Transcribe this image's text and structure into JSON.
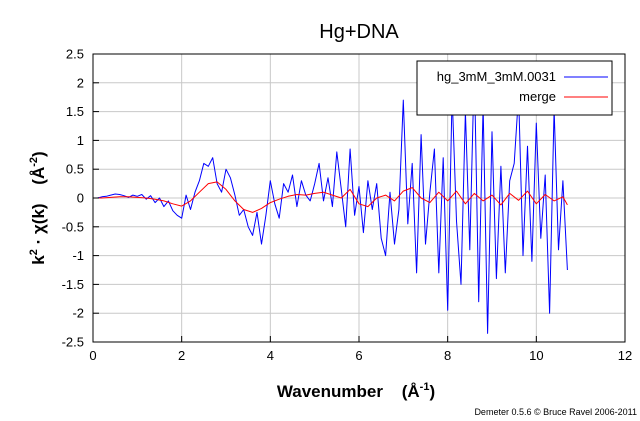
{
  "chart_data": {
    "type": "line",
    "title": "Hg+DNA",
    "xlabel": "Wavenumber",
    "xlabel_unit": "(Å",
    "xlabel_unit_sup": "-1",
    "xlabel_unit_close": ")",
    "ylabel_k": "k",
    "ylabel_k_sup": "2",
    "ylabel_chi": " · χ(k)",
    "ylabel_unit": "(Å",
    "ylabel_unit_sup": "-2",
    "ylabel_unit_close": ")",
    "xlim": [
      0,
      12
    ],
    "ylim": [
      -2.5,
      2.5
    ],
    "x_ticks": [
      "0",
      "2",
      "4",
      "6",
      "8",
      "10",
      "12"
    ],
    "y_ticks": [
      "-2.5",
      "-2",
      "-1.5",
      "-1",
      "-0.5",
      "0",
      "0.5",
      "1",
      "1.5",
      "2",
      "2.5"
    ],
    "grid": true,
    "legend_position": "top-right",
    "credit": "Demeter 0.5.6 © Bruce Ravel 2006-2011",
    "series": [
      {
        "name": "hg_3mM_3mM.0031",
        "color": "#0000ff",
        "x": [
          0.0,
          0.1,
          0.2,
          0.3,
          0.4,
          0.5,
          0.6,
          0.7,
          0.8,
          0.9,
          1.0,
          1.1,
          1.2,
          1.3,
          1.4,
          1.5,
          1.6,
          1.7,
          1.8,
          1.9,
          2.0,
          2.1,
          2.2,
          2.3,
          2.4,
          2.5,
          2.6,
          2.7,
          2.8,
          2.9,
          3.0,
          3.1,
          3.2,
          3.3,
          3.4,
          3.5,
          3.6,
          3.7,
          3.8,
          3.9,
          4.0,
          4.1,
          4.2,
          4.3,
          4.4,
          4.5,
          4.6,
          4.7,
          4.8,
          4.9,
          5.0,
          5.1,
          5.2,
          5.3,
          5.4,
          5.5,
          5.6,
          5.7,
          5.8,
          5.9,
          6.0,
          6.1,
          6.2,
          6.3,
          6.4,
          6.5,
          6.6,
          6.7,
          6.8,
          6.9,
          7.0,
          7.1,
          7.2,
          7.3,
          7.4,
          7.5,
          7.6,
          7.7,
          7.8,
          7.9,
          8.0,
          8.1,
          8.2,
          8.3,
          8.4,
          8.5,
          8.6,
          8.7,
          8.8,
          8.9,
          9.0,
          9.1,
          9.2,
          9.3,
          9.4,
          9.5,
          9.6,
          9.7,
          9.8,
          9.9,
          10.0,
          10.1,
          10.2,
          10.3,
          10.4,
          10.5,
          10.6,
          10.7
        ],
        "y": [
          0.0,
          0.0,
          0.02,
          0.03,
          0.05,
          0.07,
          0.06,
          0.04,
          0.01,
          0.05,
          0.03,
          0.06,
          -0.02,
          0.04,
          -0.08,
          0.0,
          -0.15,
          -0.05,
          -0.22,
          -0.3,
          -0.35,
          0.05,
          -0.2,
          0.1,
          0.3,
          0.6,
          0.55,
          0.7,
          0.25,
          0.1,
          0.5,
          0.35,
          0.05,
          -0.3,
          -0.2,
          -0.5,
          -0.65,
          -0.25,
          -0.8,
          -0.3,
          0.3,
          -0.1,
          -0.35,
          0.25,
          0.1,
          0.4,
          -0.15,
          0.3,
          0.05,
          -0.05,
          0.25,
          0.6,
          -0.05,
          0.35,
          -0.15,
          0.8,
          0.15,
          -0.5,
          0.85,
          -0.3,
          0.2,
          -0.6,
          0.3,
          -0.2,
          0.25,
          -0.7,
          -1.0,
          0.1,
          -0.8,
          -0.2,
          1.7,
          -0.45,
          0.6,
          -1.3,
          1.1,
          -0.8,
          0.1,
          0.85,
          -1.3,
          0.7,
          -1.95,
          1.8,
          -0.4,
          -1.5,
          1.5,
          -0.9,
          2.3,
          -1.8,
          1.6,
          -2.35,
          1.15,
          -1.4,
          0.55,
          -1.3,
          0.3,
          0.6,
          1.8,
          -1.0,
          0.9,
          -1.1,
          1.3,
          -0.7,
          0.4,
          -2.0,
          1.55,
          -0.9,
          0.3,
          -1.25
        ]
      },
      {
        "name": "merge",
        "color": "#ff0000",
        "x": [
          0.0,
          0.2,
          0.4,
          0.6,
          0.8,
          1.0,
          1.2,
          1.4,
          1.6,
          1.8,
          2.0,
          2.2,
          2.4,
          2.6,
          2.8,
          3.0,
          3.2,
          3.4,
          3.6,
          3.8,
          4.0,
          4.2,
          4.4,
          4.6,
          4.8,
          5.0,
          5.2,
          5.4,
          5.6,
          5.8,
          6.0,
          6.2,
          6.4,
          6.6,
          6.8,
          7.0,
          7.2,
          7.4,
          7.6,
          7.8,
          8.0,
          8.2,
          8.4,
          8.6,
          8.8,
          9.0,
          9.2,
          9.4,
          9.6,
          9.8,
          10.0,
          10.2,
          10.4,
          10.6,
          10.7
        ],
        "y": [
          0.0,
          0.0,
          0.01,
          0.02,
          0.02,
          0.01,
          0.0,
          -0.02,
          -0.05,
          -0.1,
          -0.14,
          -0.05,
          0.1,
          0.25,
          0.28,
          0.15,
          -0.05,
          -0.2,
          -0.25,
          -0.18,
          -0.08,
          -0.02,
          0.03,
          0.06,
          0.05,
          0.08,
          0.1,
          0.05,
          0.0,
          0.15,
          -0.1,
          -0.15,
          0.0,
          0.05,
          -0.05,
          0.12,
          0.18,
          0.0,
          -0.08,
          0.1,
          -0.05,
          0.12,
          -0.1,
          0.08,
          -0.05,
          0.05,
          -0.12,
          0.08,
          -0.04,
          0.12,
          -0.1,
          0.06,
          -0.05,
          0.02,
          -0.12
        ]
      }
    ]
  }
}
